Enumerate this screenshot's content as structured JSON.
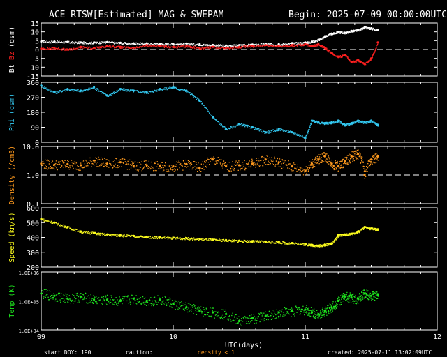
{
  "header": {
    "title": "ACE RTSW[Estimated] MAG & SWEPAM",
    "begin": "Begin: 2025-07-09 00:00:00UTC"
  },
  "footer": {
    "start_doy": "start DOY: 190",
    "caution": "caution:",
    "density_note": "density < 1",
    "created": "created: 2025-07-11 13:02:09UTC",
    "xlabel": "UTC(days)"
  },
  "colors": {
    "bt": "#ffffff",
    "bz": "#ff2020",
    "phi": "#33c8f0",
    "density": "#ff9a1e",
    "speed": "#ffff1e",
    "temp": "#1ee61e",
    "axes": "#ffffff"
  },
  "chart_data": [
    {
      "type": "scatter",
      "panel": "bt_bz",
      "ylabel_parts": [
        "Bt",
        "Bz",
        "(gsm)"
      ],
      "yticks": [
        15,
        10,
        5,
        0,
        -5,
        -10,
        -15
      ],
      "ytick_labels": [
        "15",
        "10",
        "5",
        "0",
        "-5",
        "-10",
        "-15"
      ],
      "ylim": [
        -15,
        15
      ],
      "x_range": [
        9,
        12
      ],
      "xticks": [
        9,
        10,
        11,
        12
      ],
      "xtick_labels": [
        "09",
        "10",
        "11",
        "12"
      ],
      "reference_line": 0,
      "series": [
        {
          "name": "Bt",
          "x": [
            9.0,
            9.1,
            9.2,
            9.3,
            9.4,
            9.5,
            9.6,
            9.7,
            9.8,
            9.9,
            10.0,
            10.1,
            10.2,
            10.3,
            10.4,
            10.5,
            10.6,
            10.7,
            10.8,
            10.9,
            11.0,
            11.05,
            11.1,
            11.15,
            11.2,
            11.25,
            11.3,
            11.35,
            11.4,
            11.45,
            11.5,
            11.55
          ],
          "y": [
            4.5,
            4.5,
            4.3,
            4.0,
            4.0,
            4.2,
            3.8,
            3.5,
            3.5,
            3.3,
            3.2,
            3.4,
            3.0,
            2.6,
            2.3,
            2.5,
            2.8,
            3.2,
            3.0,
            3.6,
            4.0,
            4.5,
            5.5,
            7.5,
            9.0,
            10.0,
            9.5,
            10.5,
            11.0,
            12.5,
            12.0,
            11.0
          ]
        },
        {
          "name": "Bz",
          "x": [
            9.0,
            9.1,
            9.2,
            9.3,
            9.4,
            9.5,
            9.6,
            9.7,
            9.8,
            9.9,
            10.0,
            10.1,
            10.2,
            10.3,
            10.4,
            10.5,
            10.6,
            10.7,
            10.8,
            10.9,
            11.0,
            11.05,
            11.1,
            11.15,
            11.2,
            11.25,
            11.3,
            11.35,
            11.4,
            11.45,
            11.5,
            11.55
          ],
          "y": [
            0.5,
            1.0,
            0.0,
            1.5,
            1.0,
            2.0,
            1.5,
            1.0,
            2.5,
            2.0,
            1.5,
            2.0,
            1.0,
            1.5,
            1.0,
            1.5,
            2.0,
            2.5,
            2.0,
            2.5,
            3.0,
            2.0,
            3.0,
            1.0,
            -2.0,
            -4.0,
            -3.0,
            -7.0,
            -6.0,
            -8.0,
            -5.0,
            4.0
          ]
        }
      ]
    },
    {
      "type": "scatter",
      "panel": "phi",
      "ylabel": "Phi (gsm)",
      "yticks": [
        360,
        270,
        180,
        90,
        0
      ],
      "ytick_labels": [
        "360",
        "270",
        "180",
        "90",
        "0"
      ],
      "ylim": [
        0,
        360
      ],
      "x_range": [
        9,
        12
      ],
      "series": [
        {
          "name": "Phi",
          "x": [
            9.0,
            9.1,
            9.2,
            9.3,
            9.4,
            9.5,
            9.6,
            9.7,
            9.8,
            9.9,
            10.0,
            10.1,
            10.2,
            10.3,
            10.4,
            10.5,
            10.6,
            10.7,
            10.8,
            10.9,
            11.0,
            11.05,
            11.1,
            11.15,
            11.2,
            11.25,
            11.3,
            11.35,
            11.4,
            11.45,
            11.5,
            11.55
          ],
          "y": [
            340,
            300,
            320,
            310,
            330,
            280,
            320,
            310,
            300,
            320,
            330,
            310,
            250,
            150,
            80,
            110,
            90,
            60,
            80,
            60,
            30,
            130,
            120,
            115,
            120,
            130,
            105,
            115,
            130,
            120,
            130,
            105
          ]
        }
      ]
    },
    {
      "type": "scatter",
      "panel": "density",
      "ylabel": "Density (/cm3)",
      "scale": "log",
      "yticks": [
        10,
        1,
        0.1
      ],
      "ytick_labels": [
        "10.0",
        "1.0",
        "0.1"
      ],
      "ylim": [
        0.1,
        10
      ],
      "x_range": [
        9,
        12
      ],
      "reference_line": 1.0,
      "series": [
        {
          "name": "Density",
          "x": [
            9.0,
            9.1,
            9.2,
            9.3,
            9.4,
            9.5,
            9.6,
            9.7,
            9.8,
            9.9,
            10.0,
            10.1,
            10.2,
            10.3,
            10.4,
            10.5,
            10.6,
            10.7,
            10.8,
            10.9,
            11.0,
            11.05,
            11.1,
            11.15,
            11.2,
            11.25,
            11.3,
            11.35,
            11.4,
            11.45,
            11.5,
            11.55
          ],
          "y": [
            2.5,
            2.3,
            2.4,
            2.2,
            3.2,
            2.5,
            2.8,
            2.1,
            2.2,
            2.0,
            2.0,
            2.4,
            1.8,
            3.5,
            2.0,
            2.2,
            2.5,
            3.5,
            2.8,
            2.0,
            1.4,
            2.5,
            3.5,
            4.5,
            2.5,
            2.0,
            3.0,
            4.5,
            5.5,
            1.0,
            3.5,
            4.5
          ]
        }
      ]
    },
    {
      "type": "scatter",
      "panel": "speed",
      "ylabel": "Speed (km/s)",
      "yticks": [
        600,
        500,
        400,
        300,
        200
      ],
      "ytick_labels": [
        "600",
        "500",
        "400",
        "300",
        "200"
      ],
      "ylim": [
        200,
        600
      ],
      "x_range": [
        9,
        12
      ],
      "series": [
        {
          "name": "Speed",
          "x": [
            9.0,
            9.1,
            9.2,
            9.3,
            9.4,
            9.5,
            9.6,
            9.7,
            9.8,
            9.9,
            10.0,
            10.1,
            10.2,
            10.3,
            10.4,
            10.5,
            10.6,
            10.7,
            10.8,
            10.9,
            11.0,
            11.05,
            11.1,
            11.15,
            11.2,
            11.25,
            11.3,
            11.35,
            11.4,
            11.45,
            11.5,
            11.55
          ],
          "y": [
            525,
            500,
            470,
            440,
            430,
            420,
            415,
            410,
            405,
            400,
            398,
            395,
            390,
            385,
            382,
            378,
            375,
            372,
            368,
            362,
            355,
            350,
            345,
            352,
            360,
            415,
            420,
            425,
            440,
            470,
            460,
            455
          ]
        }
      ]
    },
    {
      "type": "scatter",
      "panel": "temp",
      "ylabel": "Temp (K)",
      "scale": "log",
      "yticks": [
        1000000,
        100000,
        10000
      ],
      "ytick_labels": [
        "1.0E+06",
        "1.0E+05",
        "1.0E+04"
      ],
      "ylim": [
        10000,
        1000000
      ],
      "x_range": [
        9,
        12
      ],
      "reference_line": 100000,
      "series": [
        {
          "name": "Temp",
          "x": [
            9.0,
            9.1,
            9.2,
            9.3,
            9.4,
            9.5,
            9.6,
            9.7,
            9.8,
            9.9,
            10.0,
            10.1,
            10.2,
            10.3,
            10.4,
            10.5,
            10.6,
            10.7,
            10.8,
            10.9,
            11.0,
            11.05,
            11.1,
            11.15,
            11.2,
            11.25,
            11.3,
            11.35,
            11.4,
            11.45,
            11.5,
            11.55
          ],
          "y": [
            180000,
            150000,
            120000,
            140000,
            110000,
            110000,
            100000,
            120000,
            100000,
            110000,
            80000,
            60000,
            45000,
            40000,
            35000,
            20000,
            25000,
            30000,
            40000,
            45000,
            50000,
            40000,
            35000,
            45000,
            60000,
            100000,
            140000,
            130000,
            120000,
            180000,
            150000,
            160000
          ]
        }
      ]
    }
  ]
}
